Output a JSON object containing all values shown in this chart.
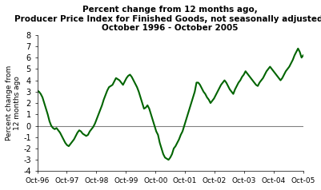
{
  "title": "Percent change from 12 months ago,\nProducer Price Index for Finished Goods, not seasonally adjusted,\nOctober 1996 - October 2005",
  "ylabel": "Percent change from\n12 months ago",
  "line_color": "#006400",
  "line_width": 1.5,
  "bg_color": "#ffffff",
  "ylim": [
    -4,
    8
  ],
  "yticks": [
    -4,
    -3,
    -2,
    -1,
    0,
    1,
    2,
    3,
    4,
    5,
    6,
    7,
    8
  ],
  "xtick_labels": [
    "Oct-96",
    "Oct-97",
    "Oct-98",
    "Oct-99",
    "Oct-00",
    "Oct-01",
    "Oct-02",
    "Oct-03",
    "Oct-04",
    "Oct-05"
  ],
  "values": [
    3.1,
    3.0,
    2.8,
    2.5,
    2.0,
    1.5,
    1.0,
    0.4,
    0.0,
    -0.2,
    -0.3,
    -0.2,
    -0.4,
    -0.6,
    -0.9,
    -1.2,
    -1.5,
    -1.7,
    -1.8,
    -1.6,
    -1.4,
    -1.2,
    -0.9,
    -0.6,
    -0.4,
    -0.5,
    -0.7,
    -0.8,
    -0.9,
    -0.8,
    -0.5,
    -0.3,
    -0.1,
    0.2,
    0.6,
    1.0,
    1.4,
    1.8,
    2.3,
    2.7,
    3.1,
    3.4,
    3.5,
    3.6,
    3.9,
    4.2,
    4.1,
    4.0,
    3.8,
    3.6,
    3.9,
    4.2,
    4.4,
    4.5,
    4.3,
    4.0,
    3.7,
    3.4,
    3.0,
    2.5,
    2.0,
    1.5,
    1.6,
    1.8,
    1.5,
    1.0,
    0.5,
    0.0,
    -0.5,
    -0.8,
    -1.5,
    -2.0,
    -2.5,
    -2.8,
    -2.9,
    -3.0,
    -2.8,
    -2.5,
    -2.0,
    -1.8,
    -1.5,
    -1.2,
    -0.8,
    -0.5,
    0.0,
    0.5,
    1.0,
    1.5,
    2.0,
    2.5,
    3.0,
    3.8,
    3.8,
    3.6,
    3.3,
    3.0,
    2.8,
    2.5,
    2.3,
    2.0,
    2.2,
    2.4,
    2.7,
    3.0,
    3.3,
    3.6,
    3.8,
    4.0,
    3.8,
    3.5,
    3.2,
    3.0,
    2.8,
    3.2,
    3.5,
    3.8,
    4.0,
    4.3,
    4.5,
    4.8,
    4.6,
    4.4,
    4.2,
    4.0,
    3.8,
    3.6,
    3.5,
    3.8,
    4.0,
    4.2,
    4.5,
    4.8,
    5.0,
    5.2,
    5.0,
    4.8,
    4.6,
    4.4,
    4.2,
    4.0,
    4.2,
    4.5,
    4.8,
    5.0,
    5.2,
    5.5,
    5.8,
    6.2,
    6.5,
    6.8,
    6.5,
    6.0,
    6.2
  ]
}
